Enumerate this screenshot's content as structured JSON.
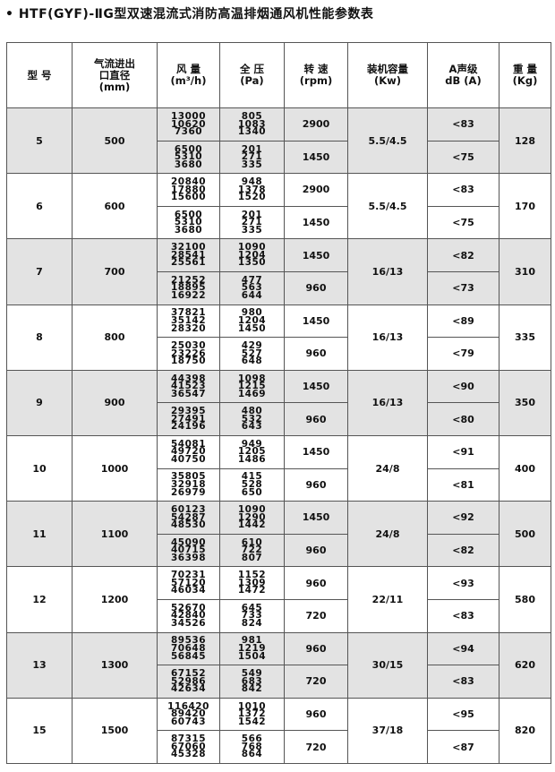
{
  "title": "• HTF(GYF)-ⅡG型双速混流式消防高温排烟通风机性能参数表",
  "headers": [
    [
      "型 号"
    ],
    [
      "气流进出",
      "口直径",
      "(mm)"
    ],
    [
      "风 量",
      "(m³/h)"
    ],
    [
      "全 压",
      "(Pa)"
    ],
    [
      "转 速",
      "(rpm)"
    ],
    [
      "装机容量",
      "(Kw)"
    ],
    [
      "A声级",
      "dB (A)"
    ],
    [
      "重 量",
      "(Kg)"
    ]
  ],
  "rows": [
    {
      "model": "5",
      "diameter": "500",
      "power": "5.5/4.5",
      "weight": "128",
      "shaded": true,
      "speeds": [
        {
          "flow": [
            "13000",
            "10620",
            "7360"
          ],
          "pressure": [
            "805",
            "1083",
            "1340"
          ],
          "rpm": "2900",
          "noise": "<83"
        },
        {
          "flow": [
            "6500",
            "5310",
            "3680"
          ],
          "pressure": [
            "201",
            "271",
            "335"
          ],
          "rpm": "1450",
          "noise": "<75"
        }
      ]
    },
    {
      "model": "6",
      "diameter": "600",
      "power": "5.5/4.5",
      "weight": "170",
      "shaded": false,
      "speeds": [
        {
          "flow": [
            "20840",
            "17880",
            "15600"
          ],
          "pressure": [
            "948",
            "1378",
            "1520"
          ],
          "rpm": "2900",
          "noise": "<83"
        },
        {
          "flow": [
            "6500",
            "5310",
            "3680"
          ],
          "pressure": [
            "201",
            "271",
            "335"
          ],
          "rpm": "1450",
          "noise": "<75"
        }
      ]
    },
    {
      "model": "7",
      "diameter": "700",
      "power": "16/13",
      "weight": "310",
      "shaded": true,
      "speeds": [
        {
          "flow": [
            "32100",
            "28541",
            "25561"
          ],
          "pressure": [
            "1090",
            "1204",
            "1350"
          ],
          "rpm": "1450",
          "noise": "<82"
        },
        {
          "flow": [
            "21252",
            "18895",
            "16922"
          ],
          "pressure": [
            "477",
            "563",
            "644"
          ],
          "rpm": "960",
          "noise": "<73"
        }
      ]
    },
    {
      "model": "8",
      "diameter": "800",
      "power": "16/13",
      "weight": "335",
      "shaded": false,
      "speeds": [
        {
          "flow": [
            "37821",
            "35142",
            "28320"
          ],
          "pressure": [
            "980",
            "1204",
            "1450"
          ],
          "rpm": "1450",
          "noise": "<89"
        },
        {
          "flow": [
            "25030",
            "23226",
            "18750"
          ],
          "pressure": [
            "429",
            "527",
            "648"
          ],
          "rpm": "960",
          "noise": "<79"
        }
      ]
    },
    {
      "model": "9",
      "diameter": "900",
      "power": "16/13",
      "weight": "350",
      "shaded": true,
      "speeds": [
        {
          "flow": [
            "44398",
            "41523",
            "36547"
          ],
          "pressure": [
            "1098",
            "1215",
            "1469"
          ],
          "rpm": "1450",
          "noise": "<90"
        },
        {
          "flow": [
            "29395",
            "27491",
            "24196"
          ],
          "pressure": [
            "480",
            "532",
            "643"
          ],
          "rpm": "960",
          "noise": "<80"
        }
      ]
    },
    {
      "model": "10",
      "diameter": "1000",
      "power": "24/8",
      "weight": "400",
      "shaded": false,
      "speeds": [
        {
          "flow": [
            "54081",
            "49720",
            "40750"
          ],
          "pressure": [
            "949",
            "1205",
            "1486"
          ],
          "rpm": "1450",
          "noise": "<91"
        },
        {
          "flow": [
            "35805",
            "32918",
            "26979"
          ],
          "pressure": [
            "415",
            "528",
            "650"
          ],
          "rpm": "960",
          "noise": "<81"
        }
      ]
    },
    {
      "model": "11",
      "diameter": "1100",
      "power": "24/8",
      "weight": "500",
      "shaded": true,
      "speeds": [
        {
          "flow": [
            "60123",
            "54287",
            "48530"
          ],
          "pressure": [
            "1090",
            "1290",
            "1442"
          ],
          "rpm": "1450",
          "noise": "<92"
        },
        {
          "flow": [
            "45090",
            "40715",
            "36398"
          ],
          "pressure": [
            "610",
            "722",
            "807"
          ],
          "rpm": "960",
          "noise": "<82"
        }
      ]
    },
    {
      "model": "12",
      "diameter": "1200",
      "power": "22/11",
      "weight": "580",
      "shaded": false,
      "speeds": [
        {
          "flow": [
            "70231",
            "57120",
            "46034"
          ],
          "pressure": [
            "1152",
            "1309",
            "1472"
          ],
          "rpm": "960",
          "noise": "<93"
        },
        {
          "flow": [
            "52670",
            "42840",
            "34526"
          ],
          "pressure": [
            "645",
            "733",
            "824"
          ],
          "rpm": "720",
          "noise": "<83"
        }
      ]
    },
    {
      "model": "13",
      "diameter": "1300",
      "power": "30/15",
      "weight": "620",
      "shaded": true,
      "speeds": [
        {
          "flow": [
            "89536",
            "70648",
            "56845"
          ],
          "pressure": [
            "981",
            "1219",
            "1504"
          ],
          "rpm": "960",
          "noise": "<94"
        },
        {
          "flow": [
            "67152",
            "52986",
            "42634"
          ],
          "pressure": [
            "549",
            "683",
            "842"
          ],
          "rpm": "720",
          "noise": "<83"
        }
      ]
    },
    {
      "model": "15",
      "diameter": "1500",
      "power": "37/18",
      "weight": "820",
      "shaded": false,
      "speeds": [
        {
          "flow": [
            "116420",
            "89420",
            "60743"
          ],
          "pressure": [
            "1010",
            "1372",
            "1542"
          ],
          "rpm": "960",
          "noise": "<95"
        },
        {
          "flow": [
            "87315",
            "67060",
            "45328"
          ],
          "pressure": [
            "566",
            "768",
            "864"
          ],
          "rpm": "720",
          "noise": "<87"
        }
      ]
    }
  ]
}
